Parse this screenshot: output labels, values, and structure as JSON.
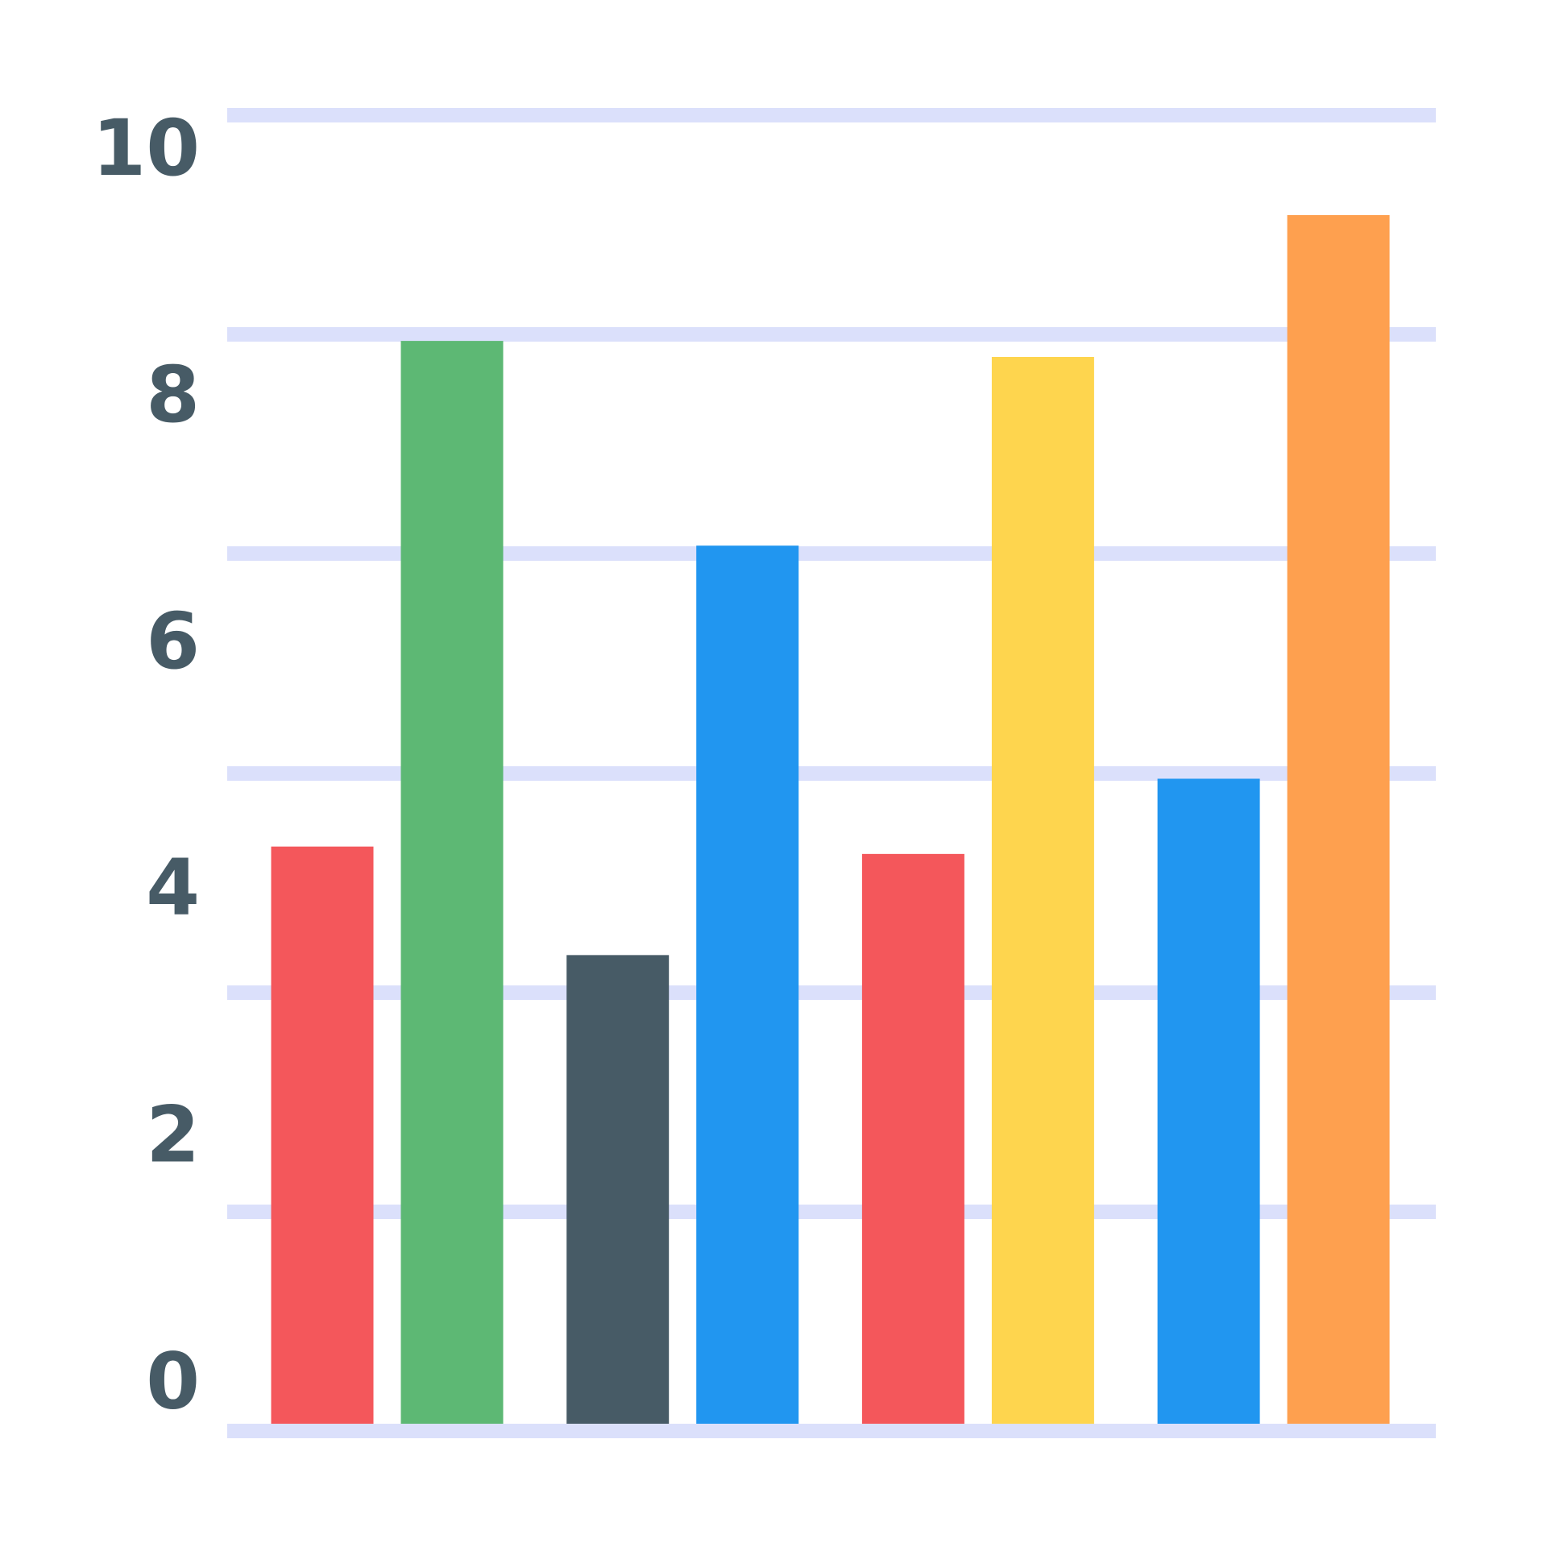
{
  "chart_data": {
    "type": "bar",
    "values": [
      4.38,
      8.48,
      3.5,
      6.82,
      4.32,
      8.35,
      4.93,
      9.5
    ],
    "colors": [
      "#f4575b",
      "#5db874",
      "#475b66",
      "#2196f0",
      "#f4575b",
      "#fed54e",
      "#2196f0",
      "#fea04f"
    ],
    "ylim": [
      -0.3,
      10.31
    ],
    "yticks": [
      0,
      2,
      4,
      6,
      8,
      10
    ]
  }
}
